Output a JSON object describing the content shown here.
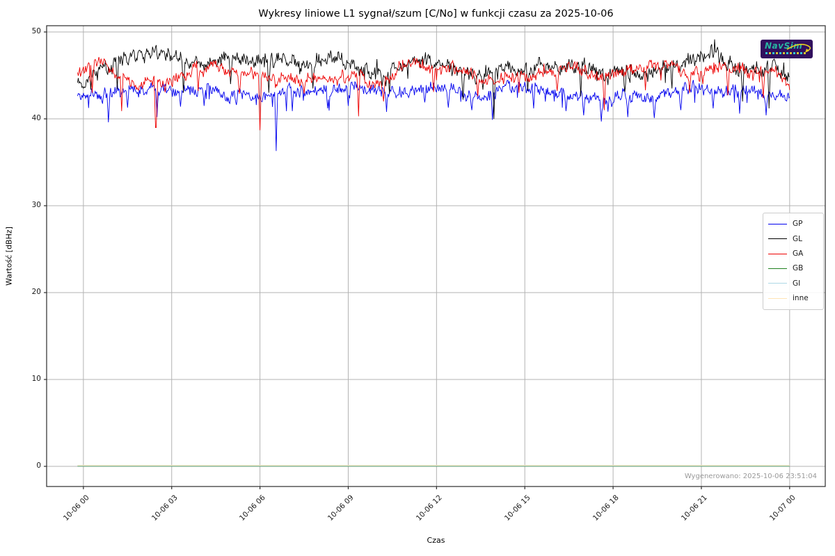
{
  "figure": {
    "watermark_timestamp": "Wygenerowano: 2025-10-06 23:51:04",
    "logo_text": "NavSim"
  },
  "chart_data": {
    "type": "line",
    "title": "Wykresy liniowe L1 sygnał/szum [C/No] w funkcji czasu za 2025-10-06",
    "xlabel": "Czas",
    "ylabel": "Wartość [dBHz]",
    "grid": true,
    "legend_position": "right",
    "x_tick_hours": [
      0,
      3,
      6,
      9,
      12,
      15,
      18,
      21,
      24
    ],
    "x_tick_labels": [
      "10-06 00",
      "10-06 03",
      "10-06 06",
      "10-06 09",
      "10-06 12",
      "10-06 15",
      "10-06 18",
      "10-06 21",
      "10-07 00"
    ],
    "y_ticks": [
      0,
      10,
      20,
      30,
      40,
      50
    ],
    "xlim_hours": [
      -1.25,
      25.21
    ],
    "ylim": [
      -2.32,
      50.72
    ],
    "data_range_hours": [
      -0.2,
      24.0
    ],
    "grid_color": "#b3b3b3",
    "frame_color": "#2b2b2b",
    "series": [
      {
        "name": "GP",
        "color": "#0000ee",
        "seed": 11,
        "noise": {
          "amp": 0.4,
          "jit": 0.8,
          "p_dn": 0.05,
          "dn_amp": 1.7,
          "p_up": 0.01,
          "up_amp": 0.5
        },
        "keyframes": [
          [
            -0.2,
            42.6
          ],
          [
            0.3,
            42.5
          ],
          [
            0.8,
            42.9
          ],
          [
            1.4,
            43.4
          ],
          [
            2.0,
            43.6
          ],
          [
            2.6,
            43.4
          ],
          [
            3.2,
            43.2
          ],
          [
            3.9,
            43.4
          ],
          [
            4.5,
            43.2
          ],
          [
            5.1,
            42.7
          ],
          [
            5.7,
            42.5
          ],
          [
            6.3,
            42.9
          ],
          [
            6.9,
            43.1
          ],
          [
            7.5,
            43.2
          ],
          [
            8.2,
            43.4
          ],
          [
            8.9,
            43.3
          ],
          [
            9.5,
            43.7
          ],
          [
            10.1,
            43.2
          ],
          [
            10.6,
            42.8
          ],
          [
            11.2,
            43.3
          ],
          [
            11.8,
            43.6
          ],
          [
            12.4,
            43.3
          ],
          [
            13.0,
            42.8
          ],
          [
            13.6,
            42.7
          ],
          [
            14.2,
            43.3
          ],
          [
            14.8,
            43.7
          ],
          [
            15.4,
            43.4
          ],
          [
            16.0,
            43.0
          ],
          [
            16.6,
            42.7
          ],
          [
            17.2,
            42.5
          ],
          [
            17.8,
            42.3
          ],
          [
            18.4,
            42.6
          ],
          [
            19.0,
            42.2
          ],
          [
            19.6,
            42.6
          ],
          [
            20.2,
            43.2
          ],
          [
            20.8,
            43.6
          ],
          [
            21.4,
            43.4
          ],
          [
            22.0,
            43.2
          ],
          [
            22.6,
            43.3
          ],
          [
            23.2,
            42.9
          ],
          [
            23.7,
            42.6
          ],
          [
            24.0,
            42.3
          ]
        ],
        "spikes": [
          [
            0.85,
            39.6
          ],
          [
            1.5,
            41.3
          ],
          [
            2.5,
            40.2
          ],
          [
            3.3,
            41.4
          ],
          [
            4.1,
            41.5
          ],
          [
            5.2,
            41.6
          ],
          [
            6.55,
            36.3
          ],
          [
            7.1,
            40.9
          ],
          [
            8.3,
            41.2
          ],
          [
            9.0,
            41.5
          ],
          [
            10.3,
            40.8
          ],
          [
            11.6,
            41.9
          ],
          [
            12.4,
            41.3
          ],
          [
            13.2,
            41.0
          ],
          [
            13.9,
            39.9
          ],
          [
            15.3,
            41.2
          ],
          [
            16.4,
            40.9
          ],
          [
            17.0,
            40.4
          ],
          [
            17.6,
            39.7
          ],
          [
            18.5,
            40.2
          ],
          [
            19.4,
            40.1
          ],
          [
            20.3,
            41.0
          ],
          [
            21.4,
            41.2
          ],
          [
            22.3,
            40.6
          ],
          [
            23.2,
            40.4
          ]
        ]
      },
      {
        "name": "GL",
        "color": "#000000",
        "seed": 22,
        "noise": {
          "amp": 0.5,
          "jit": 1.0,
          "p_dn": 0.03,
          "dn_amp": 1.6,
          "p_up": 0.04,
          "up_amp": 1.3
        },
        "keyframes": [
          [
            -0.2,
            44.3
          ],
          [
            0.3,
            45.2
          ],
          [
            1.0,
            46.3
          ],
          [
            1.8,
            47.2
          ],
          [
            2.5,
            47.6
          ],
          [
            3.1,
            47.3
          ],
          [
            3.6,
            46.2
          ],
          [
            4.3,
            46.4
          ],
          [
            5.0,
            46.6
          ],
          [
            5.6,
            46.9
          ],
          [
            6.2,
            46.4
          ],
          [
            6.6,
            47.0
          ],
          [
            7.2,
            46.3
          ],
          [
            7.8,
            46.6
          ],
          [
            8.5,
            47.0
          ],
          [
            9.2,
            46.2
          ],
          [
            9.8,
            45.4
          ],
          [
            10.3,
            45.0
          ],
          [
            10.8,
            46.0
          ],
          [
            11.3,
            46.6
          ],
          [
            12.0,
            46.7
          ],
          [
            12.5,
            46.0
          ],
          [
            13.1,
            45.3
          ],
          [
            13.7,
            45.0
          ],
          [
            14.3,
            45.6
          ],
          [
            15.0,
            45.9
          ],
          [
            15.6,
            46.3
          ],
          [
            16.2,
            45.8
          ],
          [
            16.8,
            46.4
          ],
          [
            17.3,
            45.6
          ],
          [
            17.9,
            45.3
          ],
          [
            18.4,
            45.6
          ],
          [
            19.0,
            45.2
          ],
          [
            19.6,
            46.0
          ],
          [
            20.2,
            46.3
          ],
          [
            20.8,
            47.3
          ],
          [
            21.3,
            47.8
          ],
          [
            21.8,
            46.5
          ],
          [
            22.2,
            45.4
          ],
          [
            22.7,
            45.9
          ],
          [
            23.3,
            46.3
          ],
          [
            23.7,
            45.3
          ],
          [
            24.0,
            44.6
          ]
        ],
        "spikes": [
          [
            1.15,
            43.4
          ],
          [
            3.4,
            43.0
          ],
          [
            5.0,
            44.0
          ],
          [
            6.3,
            43.0
          ],
          [
            7.8,
            43.5
          ],
          [
            10.4,
            42.9
          ],
          [
            12.9,
            42.2
          ],
          [
            13.95,
            40.0
          ],
          [
            15.1,
            43.2
          ],
          [
            16.9,
            42.6
          ],
          [
            18.4,
            43.1
          ],
          [
            20.0,
            43.5
          ],
          [
            22.4,
            42.0
          ],
          [
            23.3,
            41.2
          ]
        ]
      },
      {
        "name": "GA",
        "color": "#ee0000",
        "seed": 33,
        "noise": {
          "amp": 0.4,
          "jit": 0.8,
          "p_dn": 0.03,
          "dn_amp": 1.4,
          "p_up": 0.02,
          "up_amp": 0.7
        },
        "keyframes": [
          [
            -0.2,
            44.8
          ],
          [
            0.3,
            46.0
          ],
          [
            0.7,
            46.4
          ],
          [
            1.1,
            45.0
          ],
          [
            1.6,
            44.0
          ],
          [
            2.2,
            44.2
          ],
          [
            2.8,
            44.0
          ],
          [
            3.3,
            45.0
          ],
          [
            3.8,
            45.7
          ],
          [
            4.4,
            45.9
          ],
          [
            5.0,
            45.6
          ],
          [
            5.5,
            45.3
          ],
          [
            6.0,
            45.0
          ],
          [
            6.5,
            44.3
          ],
          [
            7.0,
            44.7
          ],
          [
            7.6,
            44.6
          ],
          [
            8.2,
            44.8
          ],
          [
            8.8,
            44.6
          ],
          [
            9.3,
            45.5
          ],
          [
            9.8,
            44.2
          ],
          [
            10.3,
            44.0
          ],
          [
            10.8,
            46.3
          ],
          [
            11.3,
            46.2
          ],
          [
            11.9,
            45.6
          ],
          [
            12.5,
            46.0
          ],
          [
            13.0,
            45.2
          ],
          [
            13.6,
            44.3
          ],
          [
            14.2,
            44.5
          ],
          [
            14.8,
            44.9
          ],
          [
            15.4,
            45.3
          ],
          [
            16.0,
            45.6
          ],
          [
            16.5,
            46.0
          ],
          [
            17.0,
            45.2
          ],
          [
            17.5,
            44.7
          ],
          [
            18.0,
            45.0
          ],
          [
            18.6,
            45.3
          ],
          [
            19.2,
            45.9
          ],
          [
            19.8,
            46.2
          ],
          [
            20.4,
            45.4
          ],
          [
            21.0,
            45.2
          ],
          [
            21.6,
            46.1
          ],
          [
            22.2,
            45.6
          ],
          [
            22.8,
            45.4
          ],
          [
            23.4,
            45.7
          ],
          [
            23.8,
            44.6
          ],
          [
            24.0,
            43.4
          ]
        ],
        "spikes": [
          [
            0.3,
            43.0
          ],
          [
            1.3,
            40.9
          ],
          [
            2.46,
            39.0
          ],
          [
            3.9,
            43.2
          ],
          [
            5.3,
            42.9
          ],
          [
            6.0,
            38.7
          ],
          [
            7.5,
            42.9
          ],
          [
            9.35,
            40.3
          ],
          [
            10.2,
            42.0
          ],
          [
            11.9,
            43.1
          ],
          [
            13.4,
            42.6
          ],
          [
            14.8,
            43.0
          ],
          [
            16.1,
            43.2
          ],
          [
            17.7,
            41.0
          ],
          [
            19.1,
            43.3
          ],
          [
            20.6,
            43.0
          ],
          [
            21.9,
            42.7
          ],
          [
            23.1,
            42.4
          ]
        ]
      },
      {
        "name": "GB",
        "color": "#208020",
        "constant": 0
      },
      {
        "name": "GI",
        "color": "#add8e6",
        "constant": 0
      },
      {
        "name": "inne",
        "color": "#ffe4b5",
        "constant": 0
      }
    ]
  }
}
